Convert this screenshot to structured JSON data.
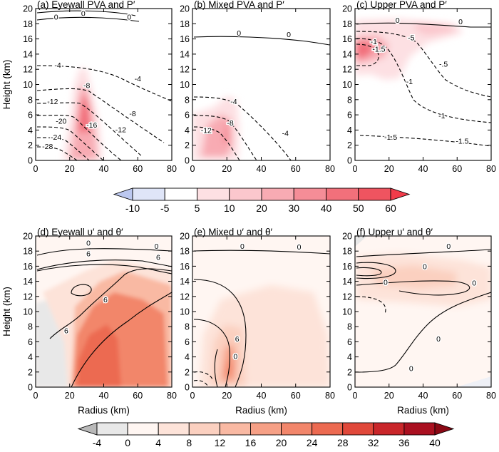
{
  "figure": {
    "row1_colorbar": {
      "ticks": [
        "-10",
        "-5",
        "5",
        "10",
        "20",
        "30",
        "40",
        "50",
        "60"
      ],
      "colors": [
        "#bcc8f0",
        "#dfe5f8",
        "#ffffff",
        "#fde0e3",
        "#fbc7cd",
        "#f8abb3",
        "#f58d97",
        "#f2707b",
        "#ef5460",
        "#f23c4a"
      ]
    },
    "row2_colorbar": {
      "ticks": [
        "-4",
        "0",
        "4",
        "8",
        "12",
        "16",
        "20",
        "24",
        "28",
        "32",
        "36",
        "40"
      ],
      "colors": [
        "#b8b8b8",
        "#e8e8e8",
        "#fff6f2",
        "#fde3d9",
        "#fbd0c0",
        "#f9b9a3",
        "#f6a086",
        "#f2866b",
        "#ec6a51",
        "#e0483a",
        "#c9262a",
        "#aa1020",
        "#8a0814"
      ]
    },
    "axis_labels": {
      "height": "Height (km)",
      "radius": "Radius (km)"
    }
  },
  "chart_data": [
    {
      "type": "heatmap",
      "panel": "a",
      "title": "(a) Eyewall PVA and P′",
      "xlabel": "",
      "ylabel": "Height (km)",
      "xlim": [
        0,
        80
      ],
      "ylim": [
        0,
        20
      ],
      "xticks": [
        "0",
        "20",
        "40",
        "60",
        "80"
      ],
      "yticks": [
        "0",
        "2",
        "4",
        "6",
        "8",
        "10",
        "12",
        "14",
        "16",
        "18",
        "20"
      ],
      "contour_labels": [
        {
          "text": "0",
          "x": 28,
          "y": 19.4
        },
        {
          "text": "0",
          "x": 12,
          "y": 18.9
        },
        {
          "text": "0",
          "x": 55,
          "y": 18.9
        },
        {
          "text": "-4",
          "x": 13,
          "y": 12.6
        },
        {
          "text": "-4",
          "x": 60,
          "y": 10.8
        },
        {
          "text": "-8",
          "x": 30,
          "y": 9.9
        },
        {
          "text": "-12",
          "x": 10,
          "y": 7.8
        },
        {
          "text": "-8",
          "x": 57,
          "y": 6.2
        },
        {
          "text": "-12",
          "x": 50,
          "y": 4.1
        },
        {
          "text": "-16",
          "x": 33,
          "y": 4.7
        },
        {
          "text": "-20",
          "x": 15,
          "y": 5.2
        },
        {
          "text": "-24",
          "x": 12,
          "y": 3.1
        },
        {
          "text": "-28",
          "x": 7,
          "y": 1.9
        }
      ]
    },
    {
      "type": "heatmap",
      "panel": "b",
      "title": "(b) Mixed PVA and P′",
      "xlabel": "",
      "ylabel": "",
      "xlim": [
        0,
        80
      ],
      "ylim": [
        0,
        20
      ],
      "xticks": [
        "0",
        "20",
        "40",
        "60",
        "80"
      ],
      "yticks": [
        "0",
        "2",
        "4",
        "6",
        "8",
        "10",
        "12",
        "14",
        "16",
        "18",
        "20"
      ],
      "contour_labels": [
        {
          "text": "0",
          "x": 27,
          "y": 16.8
        },
        {
          "text": "0",
          "x": 56,
          "y": 16.6
        },
        {
          "text": "-4",
          "x": 24,
          "y": 7.8
        },
        {
          "text": "-8",
          "x": 22,
          "y": 5.0
        },
        {
          "text": "-12",
          "x": 8,
          "y": 4.0
        },
        {
          "text": "-4",
          "x": 54,
          "y": 3.6
        }
      ]
    },
    {
      "type": "heatmap",
      "panel": "c",
      "title": "(c) Upper PVA and P′",
      "xlabel": "",
      "ylabel": "",
      "xlim": [
        0,
        80
      ],
      "ylim": [
        0,
        20
      ],
      "xticks": [
        "0",
        "20",
        "40",
        "60",
        "80"
      ],
      "yticks": [
        "0",
        "2",
        "4",
        "6",
        "8",
        "10",
        "12",
        "14",
        "16",
        "18",
        "20"
      ],
      "contour_labels": [
        {
          "text": "0",
          "x": 25,
          "y": 18.5
        },
        {
          "text": "0",
          "x": 62,
          "y": 18.3
        },
        {
          "text": "-5",
          "x": 33,
          "y": 16.2
        },
        {
          "text": "-1",
          "x": 11,
          "y": 15.7
        },
        {
          "text": "-1.5",
          "x": 14,
          "y": 14.7
        },
        {
          "text": "-.5",
          "x": 52,
          "y": 12.7
        },
        {
          "text": "-1",
          "x": 32,
          "y": 10.4
        },
        {
          "text": "-1",
          "x": 51,
          "y": 5.9
        },
        {
          "text": "-1.5",
          "x": 21,
          "y": 3.1
        },
        {
          "text": "-1.5",
          "x": 63,
          "y": 2.6
        }
      ]
    },
    {
      "type": "heatmap",
      "panel": "d",
      "title": "(d) Eyewall υ′ and θ′",
      "xlabel": "Radius (km)",
      "ylabel": "Height (km)",
      "xlim": [
        0,
        80
      ],
      "ylim": [
        0,
        20
      ],
      "xticks": [
        "0",
        "20",
        "40",
        "60",
        "80"
      ],
      "yticks": [
        "0",
        "2",
        "4",
        "6",
        "8",
        "10",
        "12",
        "14",
        "16",
        "18",
        "20"
      ],
      "contour_labels": [
        {
          "text": "0",
          "x": 31,
          "y": 19.1
        },
        {
          "text": "0",
          "x": 71,
          "y": 18.7
        },
        {
          "text": "6",
          "x": 31,
          "y": 17.7
        },
        {
          "text": "6",
          "x": 72,
          "y": 17.2
        },
        {
          "text": "6",
          "x": 41,
          "y": 11.6
        },
        {
          "text": "6",
          "x": 18,
          "y": 7.5
        }
      ]
    },
    {
      "type": "heatmap",
      "panel": "e",
      "title": "(e) Mixed υ′ and θ′",
      "xlabel": "Radius (km)",
      "ylabel": "",
      "xlim": [
        0,
        80
      ],
      "ylim": [
        0,
        20
      ],
      "xticks": [
        "0",
        "20",
        "40",
        "60",
        "80"
      ],
      "yticks": [
        "0",
        "2",
        "4",
        "6",
        "8",
        "10",
        "12",
        "14",
        "16",
        "18",
        "20"
      ],
      "contour_labels": [
        {
          "text": "0",
          "x": 29,
          "y": 18.7
        },
        {
          "text": "0",
          "x": 62,
          "y": 18.6
        },
        {
          "text": "6",
          "x": 26,
          "y": 6.4
        },
        {
          "text": "0",
          "x": 25,
          "y": 4.1
        }
      ]
    },
    {
      "type": "heatmap",
      "panel": "f",
      "title": "(f) Upper υ′ and θ′",
      "xlabel": "Radius (km)",
      "ylabel": "",
      "xlim": [
        0,
        80
      ],
      "ylim": [
        0,
        20
      ],
      "xticks": [
        "0",
        "20",
        "40",
        "60",
        "80"
      ],
      "yticks": [
        "0",
        "2",
        "4",
        "6",
        "8",
        "10",
        "12",
        "14",
        "16",
        "18",
        "20"
      ],
      "contour_labels": [
        {
          "text": "0",
          "x": 55,
          "y": 18.7
        },
        {
          "text": "0",
          "x": 41,
          "y": 16.0
        },
        {
          "text": "0",
          "x": 18,
          "y": 13.9
        },
        {
          "text": "0",
          "x": 70,
          "y": 13.8
        },
        {
          "text": "0",
          "x": 49,
          "y": 6.4
        },
        {
          "text": "0",
          "x": 33,
          "y": 2.5
        }
      ]
    }
  ]
}
